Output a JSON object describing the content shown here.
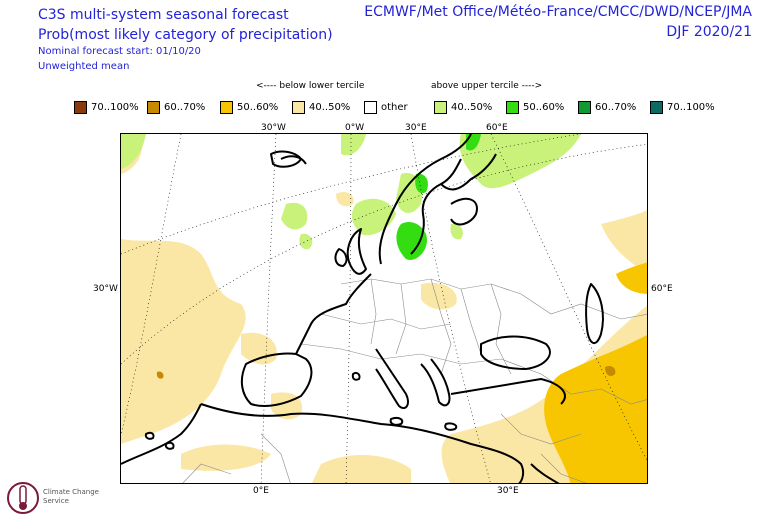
{
  "header": {
    "title_line1": "C3S multi-system seasonal forecast",
    "title_line2": "Prob(most likely category of precipitation)",
    "nominal_start": "Nominal forecast start: 01/10/20",
    "mean_type": "Unweighted mean",
    "centres": "ECMWF/Met Office/Météo-France/CMCC/DWD/NCEP/JMA",
    "season": "DJF 2020/21"
  },
  "legend": {
    "below_label": "<---- below lower tercile",
    "above_label": "above upper tercile ---->",
    "items": [
      {
        "label": "70..100%",
        "color": "#8b3a0e"
      },
      {
        "label": "60..70%",
        "color": "#c68a00"
      },
      {
        "label": "50..60%",
        "color": "#f7c600"
      },
      {
        "label": "40..50%",
        "color": "#fbe7a5"
      },
      {
        "label": "other",
        "color": "#ffffff"
      },
      {
        "label": "40..50%",
        "color": "#c9f27a"
      },
      {
        "label": "50..60%",
        "color": "#33dd11"
      },
      {
        "label": "60..70%",
        "color": "#119933"
      },
      {
        "label": "70..100%",
        "color": "#0b6b63"
      }
    ]
  },
  "axes": {
    "top": [
      "30°W",
      "0°W",
      "30°E",
      "60°E"
    ],
    "left": "30°W",
    "right": "60°E",
    "bottom": [
      "0°E",
      "30°E"
    ]
  },
  "logo": {
    "icon": "climate-change-service-logo",
    "name": "Climate Change Service"
  }
}
